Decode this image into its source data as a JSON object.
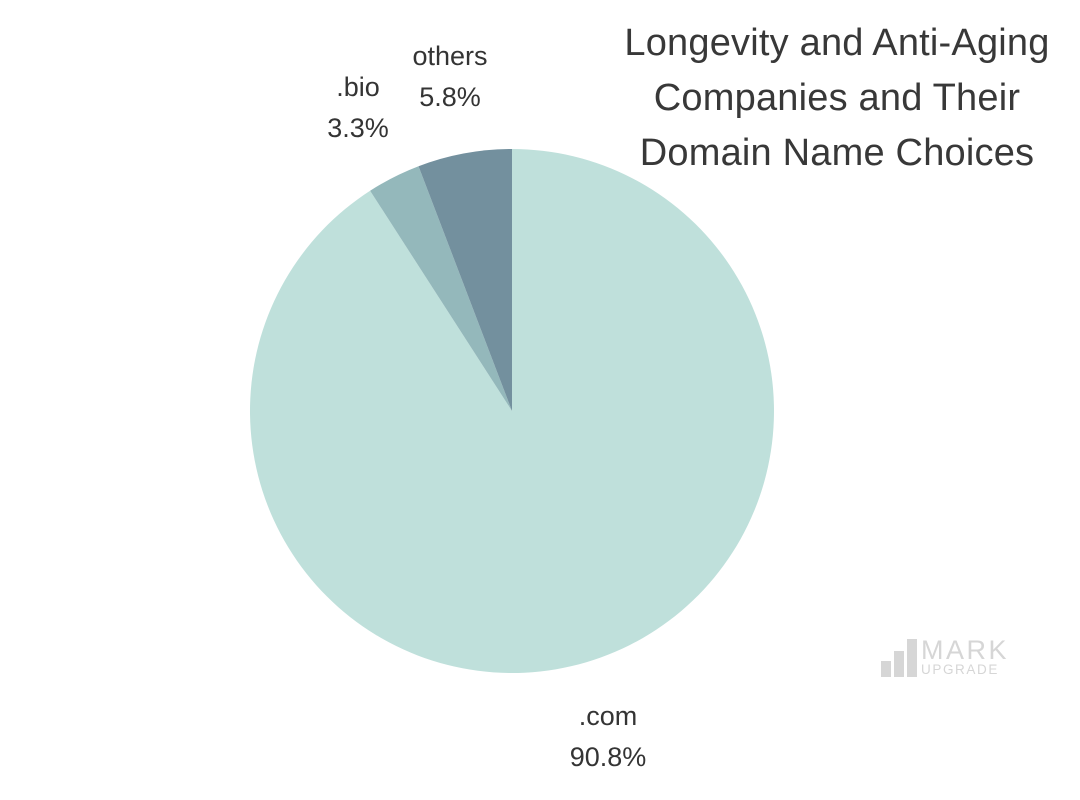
{
  "page": {
    "background": "#FFFFFF"
  },
  "chart_data": {
    "type": "pie",
    "title": "Longevity and Anti-Aging Companies and Their Domain Name Choices",
    "title_lines": [
      "Longevity and Anti-Aging",
      "Companies and Their",
      "Domain Name Choices"
    ],
    "slices": [
      {
        "label": ".com",
        "value": 90.8,
        "display_pct": "90.8%",
        "color": "#BFE0DB"
      },
      {
        "label": ".bio",
        "value": 3.3,
        "display_pct": "3.3%",
        "color": "#94B8BB"
      },
      {
        "label": "others",
        "value": 5.8,
        "display_pct": "5.8%",
        "color": "#73909E"
      }
    ],
    "start_angle": "12-oclock",
    "direction": "clockwise",
    "labels_position": "outside",
    "legend": "none",
    "text_color": "#383838",
    "label_text_color": "#343434"
  },
  "watermark": {
    "line1": "MARK",
    "line2": "UPGRADE",
    "icon": "bar-chart-icon",
    "color": "#D6D6D6"
  }
}
